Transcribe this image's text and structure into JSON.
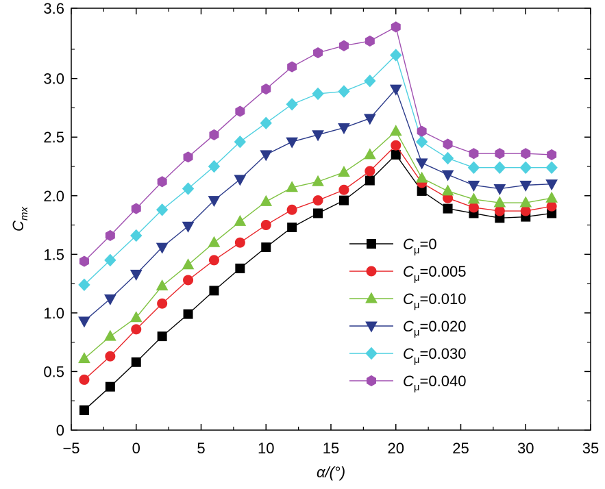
{
  "chart_data": {
    "type": "line",
    "xlabel": "α/(°)",
    "ylabel": {
      "base": "C",
      "sub": "mx"
    },
    "xlim": [
      -5,
      35
    ],
    "ylim": [
      0,
      3.6
    ],
    "xticks": [
      -5,
      0,
      5,
      10,
      15,
      20,
      25,
      30,
      35
    ],
    "xtick_labels": [
      "−5",
      "0",
      "5",
      "10",
      "15",
      "20",
      "25",
      "30",
      "35"
    ],
    "yticks": [
      0,
      0.5,
      1.0,
      1.5,
      2.0,
      2.5,
      3.0,
      3.6
    ],
    "ytick_labels": [
      "0",
      "0.5",
      "1.0",
      "1.5",
      "2.0",
      "2.5",
      "3.0",
      "3.6"
    ],
    "grid": false,
    "legend_position": "lower-right",
    "x": [
      -4,
      -2,
      0,
      2,
      4,
      6,
      8,
      10,
      12,
      14,
      16,
      18,
      20,
      22,
      24,
      26,
      28,
      30,
      32
    ],
    "series": [
      {
        "name": "Cμ=0",
        "label_base": "C",
        "label_sub": "μ",
        "label_rest": "=0",
        "color": "#000000",
        "marker": "square",
        "values": [
          0.17,
          0.37,
          0.58,
          0.8,
          0.99,
          1.19,
          1.38,
          1.56,
          1.73,
          1.85,
          1.96,
          2.13,
          2.35,
          2.04,
          1.89,
          1.85,
          1.81,
          1.82,
          1.85
        ]
      },
      {
        "name": "Cμ=0.005",
        "label_base": "C",
        "label_sub": "μ",
        "label_rest": "=0.005",
        "color": "#e8262a",
        "marker": "circle",
        "values": [
          0.43,
          0.63,
          0.86,
          1.08,
          1.28,
          1.45,
          1.6,
          1.75,
          1.88,
          1.96,
          2.05,
          2.21,
          2.43,
          2.11,
          1.98,
          1.9,
          1.87,
          1.87,
          1.91
        ]
      },
      {
        "name": "Cμ=0.010",
        "label_base": "C",
        "label_sub": "μ",
        "label_rest": "=0.010",
        "color": "#7fc241",
        "marker": "triangle-up",
        "values": [
          0.61,
          0.8,
          0.96,
          1.23,
          1.41,
          1.6,
          1.78,
          1.95,
          2.07,
          2.12,
          2.2,
          2.35,
          2.55,
          2.15,
          2.04,
          1.97,
          1.94,
          1.94,
          1.98
        ]
      },
      {
        "name": "Cμ=0.020",
        "label_base": "C",
        "label_sub": "μ",
        "label_rest": "=0.020",
        "color": "#2b3a8a",
        "marker": "triangle-down",
        "values": [
          0.93,
          1.12,
          1.33,
          1.56,
          1.74,
          1.96,
          2.14,
          2.35,
          2.46,
          2.52,
          2.58,
          2.66,
          2.91,
          2.28,
          2.18,
          2.09,
          2.06,
          2.09,
          2.1
        ]
      },
      {
        "name": "Cμ=0.030",
        "label_base": "C",
        "label_sub": "μ",
        "label_rest": "=0.030",
        "color": "#4fd0e0",
        "marker": "diamond",
        "values": [
          1.24,
          1.45,
          1.66,
          1.88,
          2.06,
          2.25,
          2.46,
          2.62,
          2.78,
          2.87,
          2.89,
          2.98,
          3.2,
          2.46,
          2.32,
          2.24,
          2.24,
          2.24,
          2.24
        ]
      },
      {
        "name": "Cμ=0.040",
        "label_base": "C",
        "label_sub": "μ",
        "label_rest": "=0.040",
        "color": "#a04fb0",
        "marker": "hexagon",
        "values": [
          1.44,
          1.66,
          1.89,
          2.12,
          2.33,
          2.52,
          2.72,
          2.91,
          3.1,
          3.22,
          3.28,
          3.32,
          3.44,
          2.55,
          2.44,
          2.36,
          2.36,
          2.36,
          2.35
        ]
      }
    ]
  }
}
